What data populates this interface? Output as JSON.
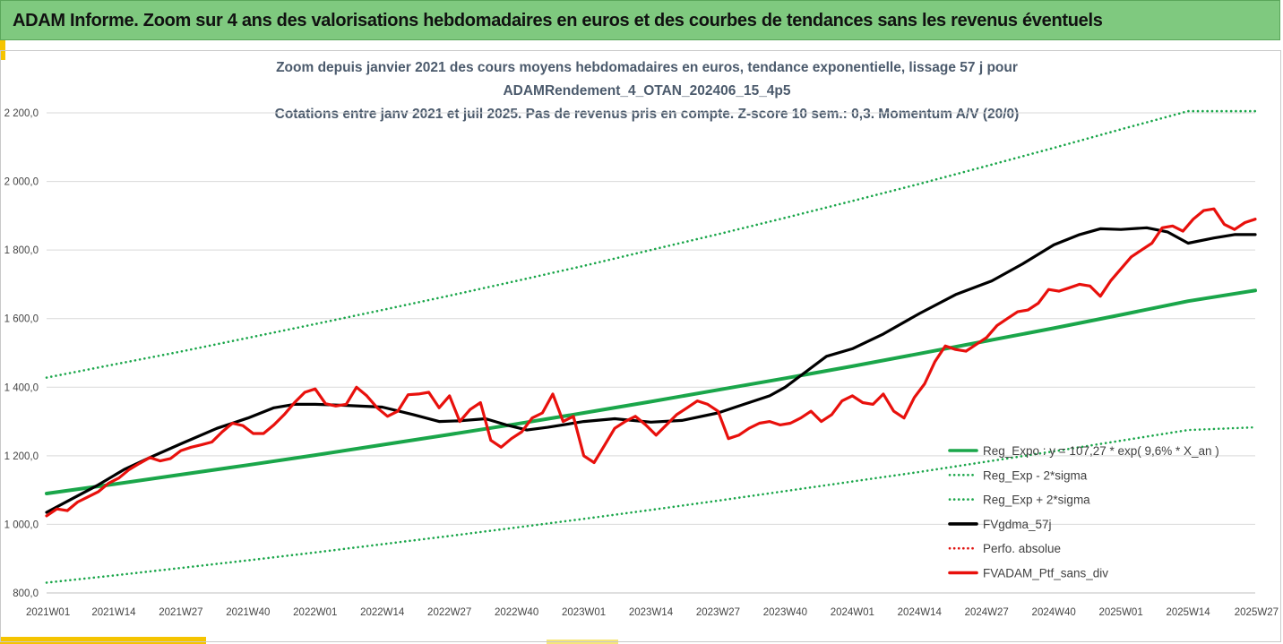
{
  "banner": {
    "title": "ADAM Informe. Zoom sur 4 ans des valorisations hebdomadaires en euros et des courbes de tendances sans les revenus éventuels"
  },
  "chart_data": {
    "type": "line",
    "title_lines": [
      "Zoom depuis janvier 2021 des cours moyens hebdomadaires  en euros, tendance exponentielle, lissage 57 j pour",
      "ADAMRendement_4_OTAN_202406_15_4p5",
      "Cotations entre janv 2021 et juil 2025. Pas de revenus pris en compte. Z-score 10 sem.: 0,3. Momentum A/V (20/0)"
    ],
    "ylim": [
      800,
      2200
    ],
    "y_ticks": [
      "800,0",
      "1 000,0",
      "1 200,0",
      "1 400,0",
      "1 600,0",
      "1 800,0",
      "2 000,0",
      "2 200,0"
    ],
    "y_tick_values": [
      800,
      1000,
      1200,
      1400,
      1600,
      1800,
      2000,
      2200
    ],
    "x_ticks": [
      "2021W01",
      "2021W14",
      "2021W27",
      "2021W40",
      "2022W01",
      "2022W14",
      "2022W27",
      "2022W40",
      "2023W01",
      "2023W14",
      "2023W27",
      "2023W40",
      "2024W01",
      "2024W14",
      "2024W27",
      "2024W40",
      "2025W01",
      "2025W14",
      "2025W27"
    ],
    "grid": "horizontal",
    "legend_position": "bottom-right",
    "series": [
      {
        "name": "Reg_Expo : y = 107,27 * exp( 9,6% *  X_an )",
        "color": "#1aa64a",
        "style": "solid",
        "x": [
          0,
          13,
          26,
          39,
          52,
          65,
          78,
          91,
          104,
          117,
          130,
          143,
          156,
          169,
          182,
          195,
          208,
          221,
          234
        ],
        "y": [
          1090,
          1117,
          1145,
          1173,
          1202,
          1232,
          1262,
          1293,
          1325,
          1358,
          1392,
          1426,
          1461,
          1498,
          1535,
          1572,
          1611,
          1651,
          1682
        ]
      },
      {
        "name": "Reg_Exp - 2*sigma",
        "color": "#1aa64a",
        "style": "dotted",
        "x": [
          0,
          13,
          26,
          39,
          52,
          65,
          78,
          91,
          104,
          117,
          130,
          143,
          156,
          169,
          182,
          195,
          208,
          221,
          234
        ],
        "y": [
          830,
          851,
          873,
          895,
          918,
          942,
          966,
          991,
          1016,
          1042,
          1069,
          1097,
          1125,
          1153,
          1183,
          1213,
          1244,
          1275,
          1283
        ]
      },
      {
        "name": "Reg_Exp + 2*sigma",
        "color": "#1aa64a",
        "style": "dotted",
        "x": [
          0,
          13,
          26,
          39,
          52,
          65,
          78,
          91,
          104,
          117,
          130,
          143,
          156,
          169,
          182,
          195,
          208,
          221,
          234
        ],
        "y": [
          1428,
          1466,
          1504,
          1544,
          1584,
          1625,
          1667,
          1710,
          1754,
          1800,
          1846,
          1894,
          1943,
          1993,
          2045,
          2098,
          2152,
          2205,
          2205
        ]
      },
      {
        "name": "FVgdma_57j",
        "color": "#000000",
        "style": "solid",
        "x": [
          0,
          5,
          10,
          15,
          20,
          26,
          33,
          39,
          44,
          48,
          52,
          58,
          65,
          71,
          76,
          80,
          85,
          89,
          93,
          97,
          104,
          110,
          117,
          123,
          130,
          136,
          140,
          143,
          147,
          151,
          156,
          162,
          169,
          176,
          183,
          189,
          195,
          200,
          204,
          208,
          213,
          217,
          221,
          226,
          230,
          234
        ],
        "y": [
          1035,
          1075,
          1115,
          1160,
          1195,
          1235,
          1280,
          1310,
          1340,
          1350,
          1350,
          1347,
          1342,
          1320,
          1300,
          1302,
          1308,
          1290,
          1275,
          1283,
          1300,
          1308,
          1298,
          1303,
          1325,
          1355,
          1375,
          1400,
          1445,
          1490,
          1512,
          1555,
          1615,
          1670,
          1710,
          1760,
          1815,
          1845,
          1862,
          1860,
          1865,
          1853,
          1820,
          1835,
          1845,
          1845
        ]
      },
      {
        "name": "Perfo. absolue",
        "color": "#e0120f",
        "style": "dotted",
        "x": [],
        "y": []
      },
      {
        "name": "FVADAM_Ptf_sans_div",
        "color": "#e8100c",
        "style": "solid",
        "x": [
          0,
          2,
          4,
          6,
          8,
          10,
          12,
          14,
          16,
          18,
          20,
          22,
          24,
          26,
          28,
          30,
          32,
          34,
          36,
          38,
          40,
          42,
          44,
          46,
          48,
          50,
          52,
          54,
          56,
          58,
          60,
          62,
          64,
          66,
          68,
          70,
          72,
          74,
          76,
          78,
          80,
          82,
          84,
          86,
          88,
          90,
          92,
          94,
          96,
          98,
          100,
          102,
          104,
          106,
          108,
          110,
          112,
          114,
          116,
          118,
          120,
          122,
          124,
          126,
          128,
          130,
          132,
          134,
          136,
          138,
          140,
          142,
          144,
          146,
          148,
          150,
          152,
          154,
          156,
          158,
          160,
          162,
          164,
          166,
          168,
          170,
          172,
          174,
          176,
          178,
          180,
          182,
          184,
          186,
          188,
          190,
          192,
          194,
          196,
          198,
          200,
          202,
          204,
          206,
          208,
          210,
          212,
          214,
          216,
          218,
          220,
          222,
          224,
          226,
          228,
          230,
          232,
          234
        ],
        "y": [
          1025,
          1045,
          1040,
          1065,
          1080,
          1095,
          1120,
          1135,
          1160,
          1178,
          1195,
          1185,
          1192,
          1215,
          1225,
          1232,
          1240,
          1270,
          1295,
          1288,
          1265,
          1265,
          1290,
          1320,
          1355,
          1385,
          1395,
          1352,
          1345,
          1350,
          1400,
          1375,
          1340,
          1315,
          1330,
          1378,
          1380,
          1385,
          1340,
          1375,
          1300,
          1335,
          1355,
          1245,
          1225,
          1250,
          1270,
          1310,
          1325,
          1380,
          1300,
          1315,
          1200,
          1180,
          1230,
          1280,
          1300,
          1315,
          1290,
          1260,
          1290,
          1320,
          1340,
          1360,
          1350,
          1330,
          1250,
          1260,
          1280,
          1295,
          1300,
          1290,
          1295,
          1310,
          1330,
          1300,
          1320,
          1360,
          1375,
          1355,
          1350,
          1380,
          1330,
          1310,
          1370,
          1410,
          1475,
          1520,
          1510,
          1505,
          1525,
          1545,
          1580,
          1600,
          1620,
          1625,
          1645,
          1685,
          1680,
          1690,
          1700,
          1695,
          1665,
          1710,
          1745,
          1780,
          1800,
          1820,
          1865,
          1870,
          1855,
          1890,
          1915,
          1920,
          1875,
          1860,
          1880,
          1890
        ]
      }
    ]
  }
}
